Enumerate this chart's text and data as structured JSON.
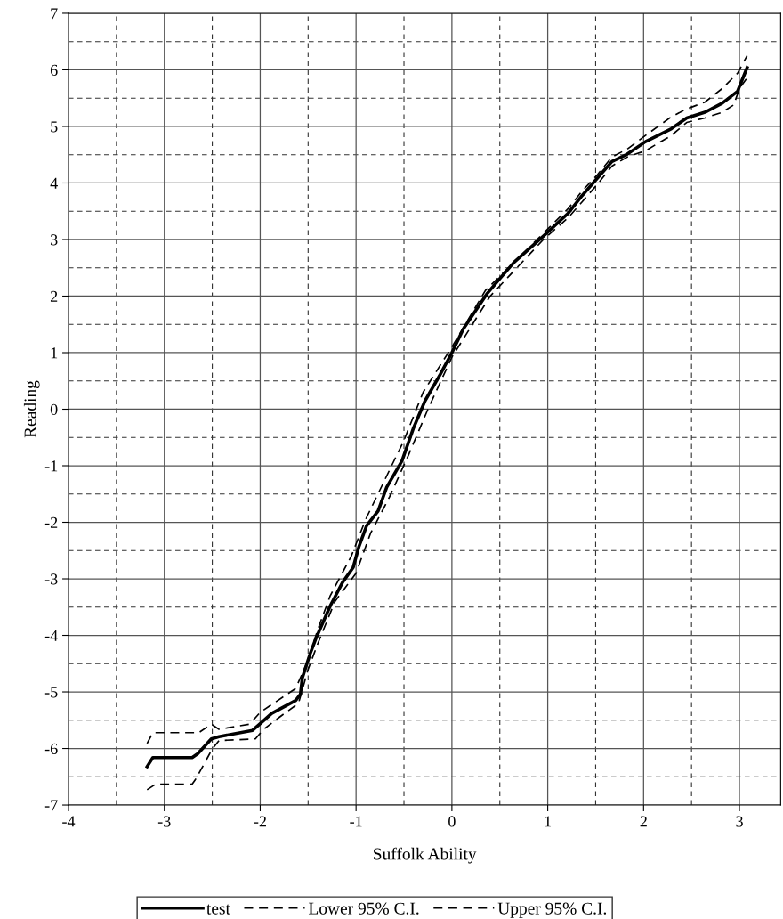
{
  "chart_data": {
    "type": "line",
    "xlabel": "Suffolk Ability",
    "ylabel": "Reading",
    "xlim": [
      -4,
      3.43
    ],
    "xticks": [
      -4,
      -3,
      -2,
      -1,
      0,
      1,
      2,
      3
    ],
    "ylim": [
      -7,
      7
    ],
    "yticks": [
      -7,
      -6,
      -5,
      -4,
      -3,
      -2,
      -1,
      0,
      1,
      2,
      3,
      4,
      5,
      6,
      7
    ],
    "grid": true,
    "legend": "bottom",
    "series": [
      {
        "name": "test",
        "color": "#000000",
        "line_style": "solid",
        "x": [
          -3.18,
          -3.12,
          -2.71,
          -2.65,
          -2.51,
          -2.43,
          -2.08,
          -2.0,
          -1.88,
          -1.63,
          -1.58,
          -1.56,
          -1.48,
          -1.42,
          -1.27,
          -1.14,
          -1.03,
          -0.97,
          -0.89,
          -0.77,
          -0.68,
          -0.52,
          -0.4,
          -0.28,
          -0.12,
          0.0,
          0.12,
          0.37,
          0.5,
          0.65,
          0.96,
          1.21,
          1.36,
          1.52,
          1.67,
          1.83,
          2.02,
          2.29,
          2.45,
          2.64,
          2.82,
          2.98,
          3.08
        ],
        "values": [
          -6.32,
          -6.16,
          -6.16,
          -6.09,
          -5.83,
          -5.79,
          -5.68,
          -5.56,
          -5.38,
          -5.15,
          -5.04,
          -4.75,
          -4.33,
          -4.06,
          -3.48,
          -3.06,
          -2.8,
          -2.43,
          -2.06,
          -1.8,
          -1.38,
          -0.91,
          -0.33,
          0.15,
          0.62,
          1.0,
          1.42,
          2.05,
          2.31,
          2.6,
          3.07,
          3.46,
          3.78,
          4.09,
          4.38,
          4.51,
          4.73,
          4.96,
          5.15,
          5.25,
          5.41,
          5.62,
          6.04
        ]
      },
      {
        "name": "Lower 95% C.I.",
        "color": "#000000",
        "line_style": "dashed",
        "x": [
          -3.18,
          -3.09,
          -2.71,
          -2.68,
          -2.62,
          -2.5,
          -2.43,
          -2.05,
          -1.97,
          -1.81,
          -1.6,
          -1.5,
          -1.4,
          -1.22,
          -1.0,
          -0.85,
          -0.65,
          -0.45,
          -0.25,
          0.0,
          0.4,
          0.96,
          1.21,
          1.36,
          1.52,
          1.67,
          1.83,
          2.02,
          2.29,
          2.45,
          2.64,
          2.82,
          2.94,
          3.0,
          3.08
        ],
        "values": [
          -6.73,
          -6.63,
          -6.63,
          -6.56,
          -6.38,
          -6.01,
          -5.86,
          -5.83,
          -5.67,
          -5.46,
          -5.2,
          -4.6,
          -4.15,
          -3.4,
          -2.9,
          -2.2,
          -1.55,
          -0.8,
          0.0,
          0.92,
          2.0,
          3.01,
          3.38,
          3.67,
          3.98,
          4.3,
          4.46,
          4.57,
          4.84,
          5.07,
          5.15,
          5.25,
          5.38,
          5.67,
          5.86
        ]
      },
      {
        "name": "Upper 95% C.I.",
        "color": "#000000",
        "line_style": "dashed",
        "x": [
          -3.18,
          -3.12,
          -2.64,
          -2.51,
          -2.43,
          -2.11,
          -2.0,
          -1.63,
          -1.5,
          -1.4,
          -1.27,
          -1.05,
          -0.9,
          -0.7,
          -0.5,
          -0.3,
          0.0,
          0.35,
          0.96,
          1.21,
          1.36,
          1.52,
          1.67,
          1.83,
          2.02,
          2.29,
          2.45,
          2.64,
          2.82,
          2.98,
          3.08
        ],
        "values": [
          -5.91,
          -5.72,
          -5.72,
          -5.57,
          -5.66,
          -5.57,
          -5.36,
          -4.94,
          -4.44,
          -3.9,
          -3.3,
          -2.6,
          -1.95,
          -1.25,
          -0.55,
          0.3,
          1.1,
          2.1,
          3.12,
          3.54,
          3.86,
          4.15,
          4.46,
          4.6,
          4.84,
          5.17,
          5.31,
          5.43,
          5.67,
          5.94,
          6.25
        ]
      }
    ]
  }
}
